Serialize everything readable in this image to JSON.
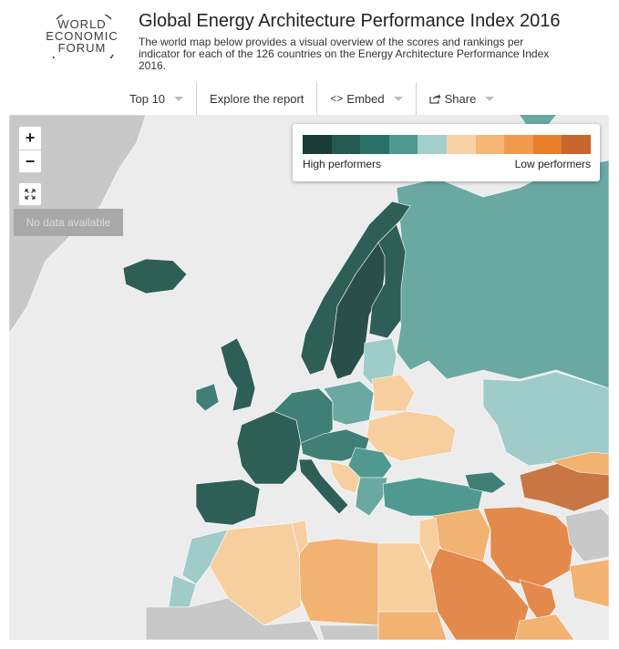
{
  "logo": {
    "lines": [
      "WORLD",
      "ECONOMIC",
      "FORUM"
    ]
  },
  "header": {
    "title": "Global Energy Architecture Performance Index 2016",
    "subtitle": "The world map below provides a visual overview of the scores and rankings per indicator for each of the 126 countries on the Energy Architecture Performance Index 2016."
  },
  "toolbar": {
    "top10": "Top 10",
    "explore": "Explore the report",
    "embed": "Embed",
    "embed_icon": "<>",
    "share": "Share"
  },
  "map_controls": {
    "zoom_in": "+",
    "zoom_out": "−",
    "no_data": "No data available"
  },
  "legend": {
    "high": "High performers",
    "low": "Low performers",
    "colors": [
      "#173d36",
      "#24594f",
      "#2a7168",
      "#4f9990",
      "#a2cfcc",
      "#f9d2a6",
      "#f6b676",
      "#f19a4d",
      "#e87f2d",
      "#c7662d"
    ]
  },
  "palette": {
    "sea": "#ececec",
    "nodata_land": "#c8c8c8",
    "high": "#2e5f56",
    "high_mid": "#3f7f76",
    "mid": "#6aa8a2",
    "mid_light": "#9fcbc8",
    "low_light": "#f7cf9e",
    "low_mid": "#f2b272",
    "low": "#e2894b",
    "lowest": "#c87643"
  }
}
